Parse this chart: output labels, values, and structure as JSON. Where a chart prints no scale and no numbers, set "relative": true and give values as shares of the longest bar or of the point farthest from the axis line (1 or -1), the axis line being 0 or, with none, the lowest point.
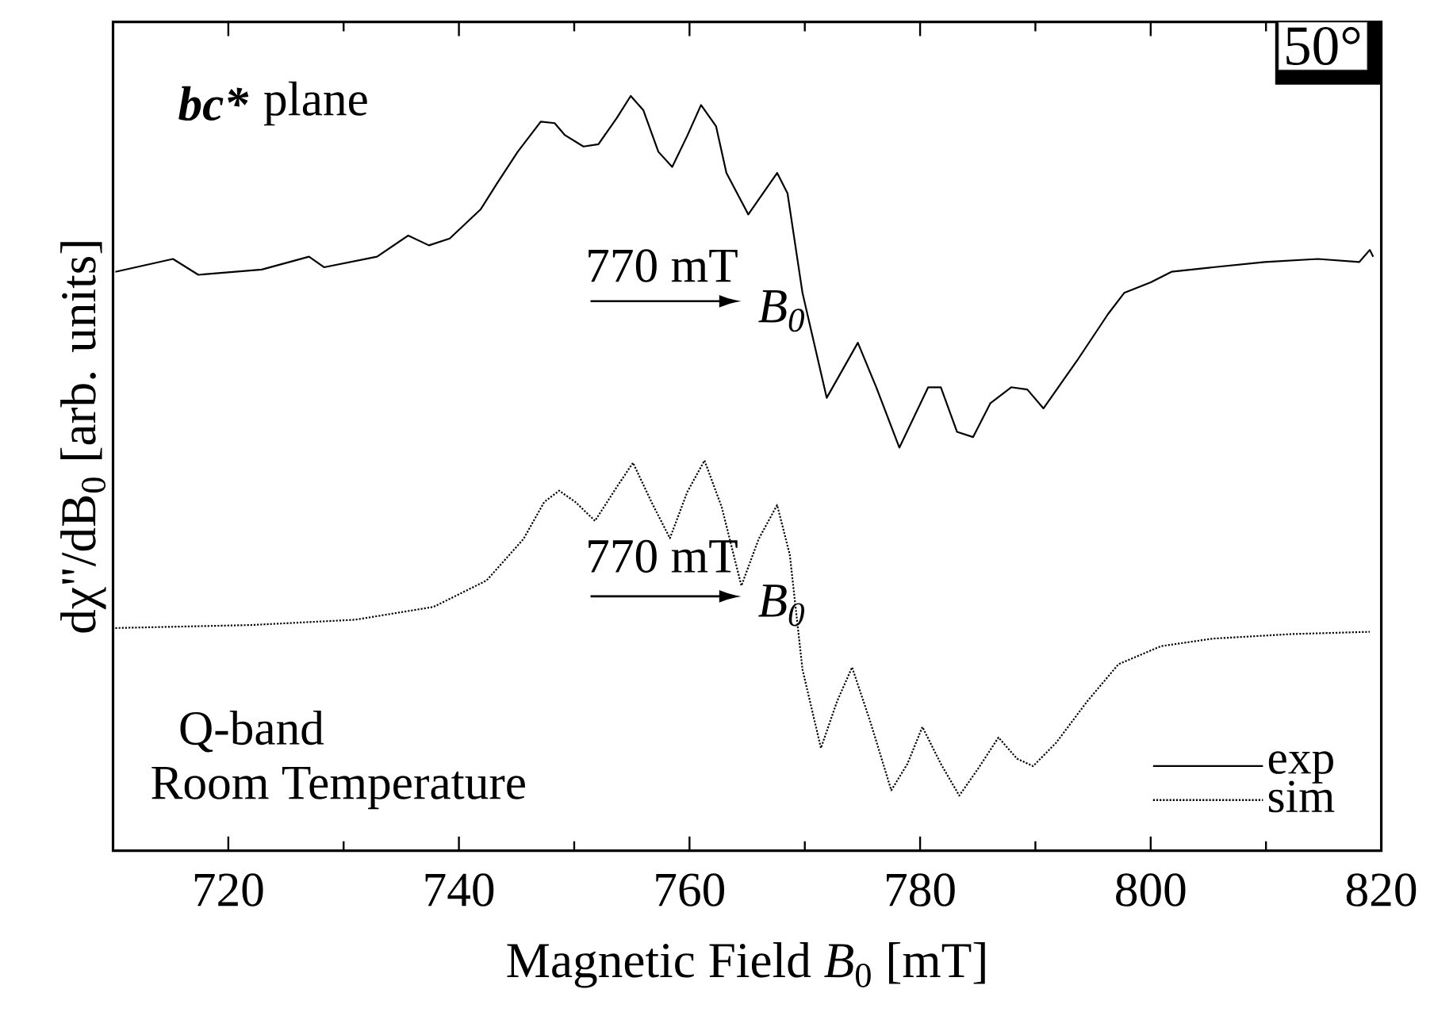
{
  "chart_data": {
    "type": "line",
    "relative": true,
    "xlabel": "Magnetic Field *B*$_{0}$ [mT]",
    "ylabel": "dχ\"/dB$_{0}$ [arb. units]",
    "xlim": [
      710,
      820
    ],
    "xticks": [
      720,
      740,
      760,
      780,
      800,
      820
    ],
    "legend": "bottom right",
    "annotations": [
      "bc*",
      "plane",
      "50°",
      "770 mT",
      "*B*$_{0}$",
      "770 mT",
      "*B*$_{0}$",
      "Q-band",
      "Room Temperature"
    ],
    "series": [
      {
        "name": "exp",
        "color": "#000000",
        "line_style": "solid",
        "x": [
          710.2,
          715.2,
          717.4,
          722.9,
          727.0,
          728.3,
          732.9,
          735.6,
          737.4,
          739.2,
          741.9,
          743.3,
          745.1,
          747.1,
          748.3,
          749.2,
          750.8,
          752.1,
          753.7,
          754.9,
          756.0,
          757.3,
          758.5,
          759.8,
          761.0,
          762.3,
          763.2,
          765.1,
          767.6,
          768.5,
          769.8,
          771.9,
          774.6,
          776.2,
          778.2,
          780.7,
          781.8,
          783.2,
          784.6,
          786.1,
          787.9,
          789.3,
          790.7,
          793.6,
          796.3,
          797.7,
          800.0,
          801.8,
          805.4,
          809.9,
          814.5,
          818.1,
          819.0,
          819.3
        ],
        "values": [
          0.767,
          0.784,
          0.763,
          0.77,
          0.787,
          0.773,
          0.787,
          0.815,
          0.802,
          0.811,
          0.85,
          0.884,
          0.926,
          0.966,
          0.964,
          0.948,
          0.933,
          0.936,
          0.971,
          1.0,
          0.981,
          0.926,
          0.906,
          0.947,
          0.988,
          0.96,
          0.898,
          0.843,
          0.898,
          0.871,
          0.739,
          0.6,
          0.673,
          0.614,
          0.534,
          0.614,
          0.614,
          0.555,
          0.548,
          0.593,
          0.614,
          0.611,
          0.586,
          0.649,
          0.711,
          0.739,
          0.753,
          0.767,
          0.773,
          0.78,
          0.784,
          0.78,
          0.796,
          0.787
        ]
      },
      {
        "name": "sim",
        "color": "#000000",
        "line_style": "dotted",
        "x": [
          710.2,
          722.0,
          731.0,
          737.8,
          742.4,
          745.6,
          747.4,
          748.7,
          750.1,
          751.8,
          753.7,
          755.1,
          756.7,
          758.3,
          759.8,
          761.3,
          762.8,
          764.5,
          766.0,
          767.6,
          768.7,
          769.8,
          771.4,
          772.8,
          774.1,
          775.7,
          777.5,
          778.9,
          780.2,
          781.8,
          783.4,
          785.0,
          786.8,
          788.4,
          789.8,
          791.8,
          794.5,
          797.2,
          800.9,
          805.4,
          812.2,
          819.0
        ],
        "values": [
          0.295,
          0.299,
          0.306,
          0.323,
          0.358,
          0.413,
          0.462,
          0.477,
          0.462,
          0.437,
          0.482,
          0.514,
          0.462,
          0.414,
          0.475,
          0.517,
          0.455,
          0.351,
          0.413,
          0.458,
          0.392,
          0.24,
          0.136,
          0.198,
          0.243,
          0.17,
          0.08,
          0.115,
          0.164,
          0.115,
          0.073,
          0.108,
          0.15,
          0.122,
          0.112,
          0.143,
          0.198,
          0.247,
          0.271,
          0.281,
          0.287,
          0.29
        ]
      }
    ]
  }
}
